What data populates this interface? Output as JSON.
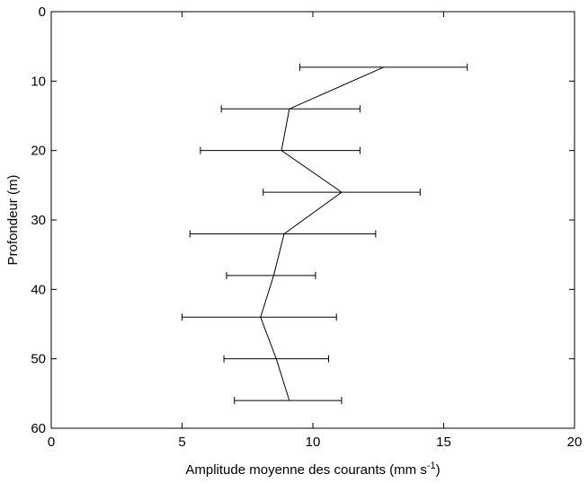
{
  "chart_data": {
    "type": "line",
    "orientation": "depth-profile",
    "xlabel": "Amplitude moyenne des courants (mm s",
    "xlabel_superscript": "-1",
    "xlabel_close": ")",
    "ylabel": "Profondeur (m)",
    "xlim": [
      0,
      20
    ],
    "ylim": [
      0,
      60
    ],
    "y_inverted": true,
    "xticks": [
      "0",
      "5",
      "10",
      "15",
      "20"
    ],
    "yticks": [
      "0",
      "10",
      "20",
      "30",
      "40",
      "50",
      "60"
    ],
    "grid": false,
    "box": true,
    "line_color": "#000000",
    "series": [
      {
        "depth": [
          8,
          14,
          20,
          26,
          32,
          38,
          44,
          50,
          56
        ],
        "amplitude": [
          12.7,
          9.1,
          8.8,
          11.1,
          8.9,
          8.5,
          8.0,
          8.6,
          9.1
        ],
        "error_low": [
          9.5,
          6.5,
          5.7,
          8.1,
          5.3,
          6.7,
          5.0,
          6.6,
          7.0
        ],
        "error_high": [
          15.9,
          11.8,
          11.8,
          14.1,
          12.4,
          10.1,
          10.9,
          10.6,
          11.1
        ]
      }
    ]
  }
}
